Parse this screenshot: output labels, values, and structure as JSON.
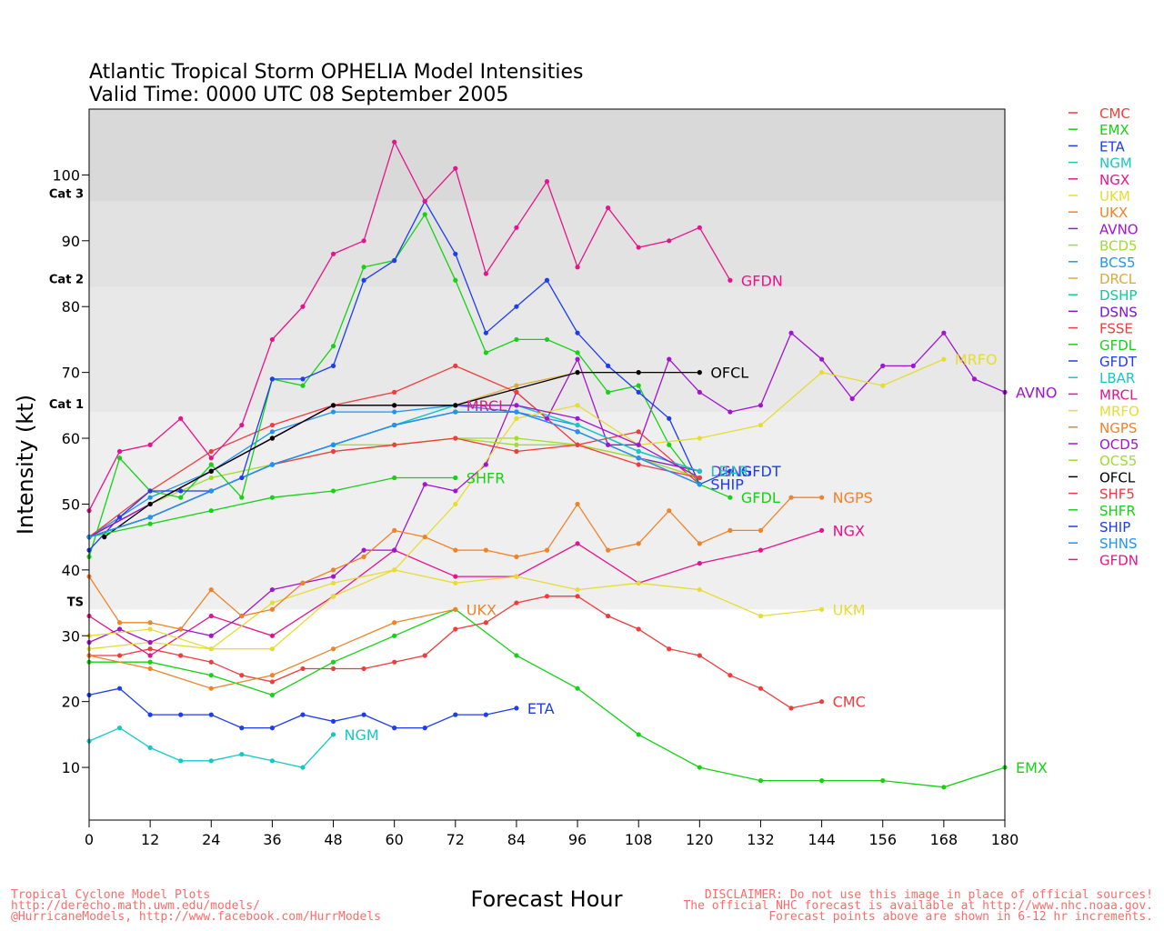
{
  "chart_data": {
    "type": "line",
    "title": "Atlantic Tropical Storm OPHELIA Model Intensities",
    "subtitle": "Valid Time: 0000 UTC 08 September 2005",
    "xlabel": "Forecast Hour",
    "ylabel": "Intensity (kt)",
    "xlim": [
      0,
      180
    ],
    "ylim": [
      2,
      110
    ],
    "xticks": [
      0,
      12,
      24,
      36,
      48,
      60,
      72,
      84,
      96,
      108,
      120,
      132,
      144,
      156,
      168,
      180
    ],
    "yticks": [
      10,
      20,
      30,
      40,
      50,
      60,
      70,
      80,
      90,
      100
    ],
    "bands": [
      {
        "from": 2,
        "to": 34,
        "color": "#ffffff"
      },
      {
        "from": 34,
        "to": 64,
        "color": "#efefef"
      },
      {
        "from": 64,
        "to": 83,
        "color": "#e8e8e8"
      },
      {
        "from": 83,
        "to": 96,
        "color": "#e2e2e2"
      },
      {
        "from": 96,
        "to": 110,
        "color": "#d9d9d9"
      }
    ],
    "category_labels": [
      {
        "label": "TS",
        "value": 34
      },
      {
        "label": "Cat 1",
        "value": 64
      },
      {
        "label": "Cat 2",
        "value": 83
      },
      {
        "label": "Cat 3",
        "value": 96
      }
    ],
    "series": [
      {
        "name": "CMC",
        "color": "#f03c3c",
        "label": "CMC",
        "x": [
          0,
          6,
          12,
          18,
          24,
          30,
          36,
          42,
          48,
          54,
          60,
          66,
          72,
          78,
          84,
          90,
          96,
          102,
          108,
          114,
          120,
          126,
          132,
          138,
          144
        ],
        "values": [
          27,
          27,
          28,
          27,
          26,
          24,
          23,
          25,
          25,
          25,
          26,
          27,
          31,
          32,
          35,
          36,
          36,
          33,
          31,
          28,
          27,
          24,
          22,
          19,
          20
        ]
      },
      {
        "name": "EMX",
        "color": "#14d214",
        "label": "EMX",
        "x": [
          0,
          12,
          24,
          36,
          48,
          60,
          72,
          84,
          96,
          108,
          120,
          132,
          144,
          156,
          168,
          180
        ],
        "values": [
          26,
          26,
          24,
          21,
          26,
          30,
          34,
          27,
          22,
          15,
          10,
          8,
          8,
          8,
          7,
          10
        ]
      },
      {
        "name": "ETA",
        "color": "#1e3cf0",
        "label": "ETA",
        "x": [
          0,
          6,
          12,
          18,
          24,
          30,
          36,
          42,
          48,
          54,
          60,
          66,
          72,
          78,
          84
        ],
        "values": [
          21,
          22,
          18,
          18,
          18,
          16,
          16,
          18,
          17,
          18,
          16,
          16,
          18,
          18,
          19
        ]
      },
      {
        "name": "NGM",
        "color": "#14c8c8",
        "label": "NGM",
        "x": [
          0,
          6,
          12,
          18,
          24,
          30,
          36,
          42,
          48
        ],
        "values": [
          14,
          16,
          13,
          11,
          11,
          12,
          11,
          10,
          15
        ]
      },
      {
        "name": "NGX",
        "color": "#e6148c",
        "label": "NGX",
        "x": [
          0,
          12,
          24,
          36,
          48,
          60,
          72,
          84,
          96,
          108,
          120,
          132,
          144
        ],
        "values": [
          33,
          27,
          33,
          30,
          36,
          43,
          39,
          39,
          44,
          38,
          41,
          43,
          46
        ]
      },
      {
        "name": "UKM",
        "color": "#e6dc32",
        "label": "UKM",
        "x": [
          0,
          12,
          24,
          36,
          48,
          60,
          72,
          84,
          96,
          108,
          120,
          132,
          144
        ],
        "values": [
          28,
          29,
          28,
          28,
          36,
          40,
          38,
          39,
          37,
          38,
          37,
          33,
          34
        ]
      },
      {
        "name": "UKX",
        "color": "#f08228",
        "label": "UKX",
        "x": [
          0,
          12,
          24,
          36,
          48,
          60,
          72
        ],
        "values": [
          27,
          25,
          22,
          24,
          28,
          32,
          34
        ]
      },
      {
        "name": "AVNO",
        "color": "#a014d2",
        "label": "AVNO",
        "x": [
          0,
          6,
          12,
          18,
          24,
          30,
          36,
          42,
          48,
          54,
          60,
          66,
          72,
          78,
          84,
          90,
          96,
          102,
          108,
          114,
          120,
          126,
          132,
          138,
          144,
          150,
          156,
          162,
          168,
          174,
          180
        ],
        "values": [
          29,
          31,
          29,
          31,
          30,
          33,
          37,
          38,
          39,
          43,
          43,
          53,
          52,
          56,
          67,
          63,
          72,
          59,
          59,
          72,
          67,
          64,
          65,
          76,
          72,
          66,
          71,
          71,
          76,
          69,
          67
        ]
      },
      {
        "name": "BCD5",
        "color": "#a0dc32",
        "label": "",
        "x": [
          0,
          12,
          24,
          36,
          48,
          60,
          72,
          84,
          96,
          108,
          120
        ],
        "values": [
          45,
          50,
          54,
          56,
          59,
          59,
          60,
          60,
          59,
          57,
          54
        ]
      },
      {
        "name": "BCS5",
        "color": "#1e96f0",
        "label": "",
        "x": [
          0,
          12,
          24,
          36,
          48,
          60,
          72,
          84,
          96,
          108,
          120
        ],
        "values": [
          45,
          51,
          55,
          61,
          64,
          64,
          65,
          64,
          62,
          58,
          55
        ]
      },
      {
        "name": "DRCL",
        "color": "#dcaa3c",
        "label": "",
        "x": [
          0,
          12,
          24,
          36,
          48,
          60,
          72,
          84,
          96,
          108,
          120
        ],
        "values": [
          45,
          50,
          55,
          60,
          65,
          65,
          65,
          68,
          70,
          70,
          70
        ]
      },
      {
        "name": "DSHP",
        "color": "#14c8a0",
        "label": "",
        "x": [
          0,
          12,
          24,
          36,
          48,
          60,
          72,
          84,
          96,
          108,
          120
        ],
        "values": [
          45,
          48,
          52,
          56,
          59,
          62,
          65,
          65,
          62,
          58,
          55
        ]
      },
      {
        "name": "DSNS",
        "color": "#8214c8",
        "label": "DSNS",
        "x": [
          0,
          12,
          24,
          36,
          48,
          60,
          72,
          84,
          96,
          108,
          120
        ],
        "values": [
          45,
          48,
          52,
          56,
          59,
          62,
          64,
          64,
          61,
          57,
          55
        ]
      },
      {
        "name": "FSSE",
        "color": "#f03c3c",
        "label": "",
        "x": [
          0,
          12,
          24,
          36,
          48,
          60,
          72,
          84,
          96,
          108,
          120
        ],
        "values": [
          45,
          52,
          58,
          62,
          65,
          67,
          71,
          67,
          59,
          61,
          53
        ]
      },
      {
        "name": "GFDL",
        "color": "#14d214",
        "label": "GFDL",
        "x": [
          0,
          6,
          12,
          18,
          24,
          30,
          36,
          42,
          48,
          54,
          60,
          66,
          72,
          78,
          84,
          90,
          96,
          102,
          108,
          114,
          120,
          126
        ],
        "values": [
          42,
          57,
          52,
          51,
          56,
          51,
          69,
          68,
          74,
          86,
          87,
          94,
          84,
          73,
          75,
          75,
          73,
          67,
          68,
          59,
          53,
          51
        ]
      },
      {
        "name": "GFDT",
        "color": "#1e3cf0",
        "label": "GFDT",
        "x": [
          0,
          6,
          12,
          18,
          24,
          30,
          36,
          42,
          48,
          54,
          60,
          66,
          72,
          78,
          84,
          90,
          96,
          102,
          108,
          114,
          120,
          126
        ],
        "values": [
          43,
          48,
          52,
          52,
          52,
          54,
          69,
          69,
          71,
          84,
          87,
          96,
          88,
          76,
          80,
          84,
          76,
          71,
          67,
          63,
          53,
          55
        ]
      },
      {
        "name": "LBAR",
        "color": "#14c8c8",
        "label": "LBAR",
        "x": [
          0,
          12,
          24,
          36,
          48,
          60,
          72,
          84,
          96,
          108,
          120
        ],
        "values": [
          45,
          48,
          52,
          56,
          59,
          62,
          65,
          65,
          62,
          58,
          55
        ]
      },
      {
        "name": "MRCL",
        "color": "#e6148c",
        "label": "MRCL",
        "x": [
          0,
          12,
          24,
          36,
          48,
          60,
          72
        ],
        "values": [
          45,
          50,
          55,
          60,
          65,
          65,
          65
        ]
      },
      {
        "name": "MRFO",
        "color": "#e6dc32",
        "label": "MRFO",
        "x": [
          0,
          12,
          24,
          36,
          48,
          60,
          72,
          84,
          96,
          108,
          120,
          132,
          144,
          156,
          168
        ],
        "values": [
          30,
          31,
          28,
          35,
          38,
          40,
          50,
          63,
          65,
          59,
          60,
          62,
          70,
          68,
          72
        ]
      },
      {
        "name": "NGPS",
        "color": "#f08228",
        "label": "NGPS",
        "x": [
          0,
          6,
          12,
          18,
          24,
          30,
          36,
          42,
          48,
          54,
          60,
          66,
          72,
          78,
          84,
          90,
          96,
          102,
          108,
          114,
          120,
          126,
          132,
          138,
          144
        ],
        "values": [
          39,
          32,
          32,
          31,
          37,
          33,
          34,
          38,
          40,
          42,
          46,
          45,
          43,
          43,
          42,
          43,
          50,
          43,
          44,
          49,
          44,
          46,
          46,
          51,
          51
        ]
      },
      {
        "name": "OCD5",
        "color": "#a014d2",
        "label": "",
        "x": [
          0,
          12,
          24,
          36,
          48,
          60,
          72,
          84,
          96,
          108,
          120
        ],
        "values": [
          45,
          50,
          55,
          60,
          65,
          65,
          65,
          65,
          63,
          59,
          54
        ]
      },
      {
        "name": "OCS5",
        "color": "#a0dc32",
        "label": "",
        "x": [
          0,
          12,
          24,
          36,
          48,
          60,
          72,
          84,
          96,
          108,
          120
        ],
        "values": [
          45,
          48,
          52,
          56,
          58,
          59,
          60,
          59,
          59,
          57,
          54
        ]
      },
      {
        "name": "OFCL",
        "color": "#000000",
        "label": "OFCL",
        "x": [
          3,
          12,
          24,
          36,
          48,
          60,
          72,
          96,
          108,
          120
        ],
        "values": [
          45,
          50,
          55,
          60,
          65,
          65,
          65,
          70,
          70,
          70
        ]
      },
      {
        "name": "SHF5",
        "color": "#f03c3c",
        "label": "",
        "x": [
          0,
          12,
          24,
          36,
          48,
          60,
          72,
          84,
          96,
          108,
          120
        ],
        "values": [
          45,
          48,
          52,
          56,
          58,
          59,
          60,
          58,
          59,
          56,
          54
        ]
      },
      {
        "name": "SHFR",
        "color": "#14d214",
        "label": "SHFR",
        "x": [
          0,
          12,
          24,
          36,
          48,
          60,
          72
        ],
        "values": [
          45,
          47,
          49,
          51,
          52,
          54,
          54
        ]
      },
      {
        "name": "SHIP",
        "color": "#1e3cf0",
        "label": "SHIP",
        "x": [
          0,
          12,
          24,
          36,
          48,
          60,
          72,
          84,
          96,
          108,
          120
        ],
        "values": [
          45,
          48,
          52,
          56,
          59,
          62,
          64,
          64,
          61,
          57,
          53
        ]
      },
      {
        "name": "SHNS",
        "color": "#1e96f0",
        "label": "",
        "x": [
          0,
          12,
          24,
          36,
          48,
          60,
          72,
          84,
          96,
          108,
          120
        ],
        "values": [
          45,
          48,
          52,
          56,
          59,
          62,
          64,
          64,
          61,
          57,
          53
        ]
      },
      {
        "name": "GFDN",
        "color": "#e6148c",
        "label": "GFDN",
        "x": [
          0,
          6,
          12,
          18,
          24,
          30,
          36,
          42,
          48,
          54,
          60,
          66,
          72,
          78,
          84,
          90,
          96,
          102,
          108,
          114,
          120,
          126
        ],
        "values": [
          49,
          58,
          59,
          63,
          57,
          62,
          75,
          80,
          88,
          90,
          105,
          96,
          101,
          85,
          92,
          99,
          86,
          95,
          89,
          90,
          92,
          84
        ]
      }
    ]
  },
  "footer": {
    "left": [
      "Tropical Cyclone Model Plots",
      "http://derecho.math.uwm.edu/models/",
      "@HurricaneModels, http://www.facebook.com/HurrModels"
    ],
    "right": [
      "DISCLAIMER: Do not use this image in place of official sources!",
      "The official NHC forecast is available at http://www.nhc.noaa.gov.",
      "Forecast points above are shown in 6-12 hr increments."
    ]
  }
}
